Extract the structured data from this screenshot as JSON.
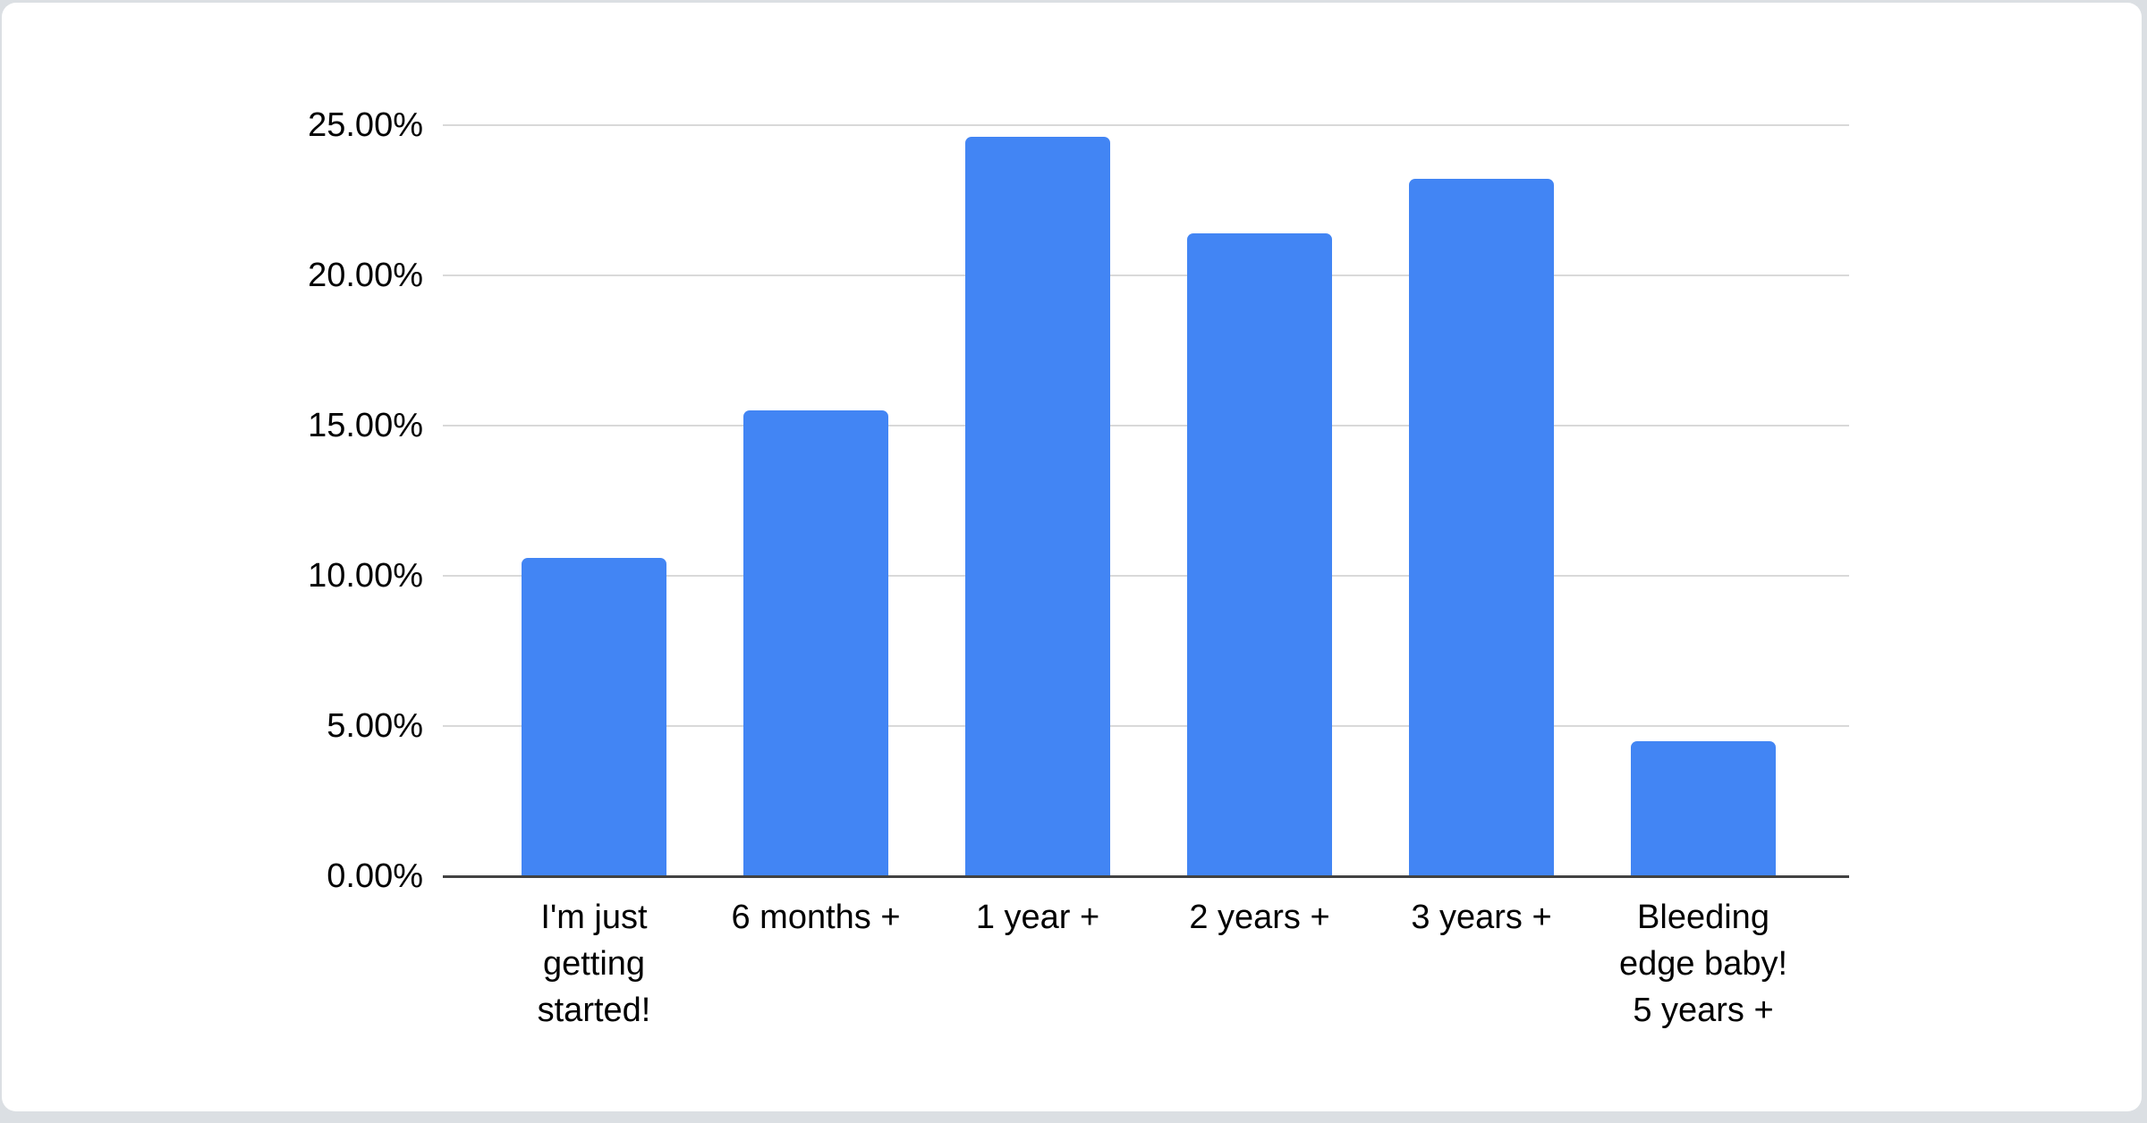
{
  "chart_data": {
    "type": "bar",
    "title": "",
    "xlabel": "",
    "ylabel": "",
    "ylim": [
      0,
      25
    ],
    "grid": true,
    "legend": false,
    "bar_color": "#4285f4",
    "categories": [
      "I'm just getting started!",
      "6 months +",
      "1 year +",
      "2 years +",
      "3 years +",
      "Bleeding edge baby! 5 years +"
    ],
    "x_tick_display": [
      "I'm just\ngetting\nstarted!",
      "6 months +",
      "1 year +",
      "2 years +",
      "3 years +",
      "Bleeding\nedge baby!\n5 years +"
    ],
    "values": [
      10.6,
      15.5,
      24.6,
      21.4,
      23.2,
      4.5
    ],
    "y_ticks": [
      {
        "value": 0,
        "label": "0.00%"
      },
      {
        "value": 5,
        "label": "5.00%"
      },
      {
        "value": 10,
        "label": "10.00%"
      },
      {
        "value": 15,
        "label": "15.00%"
      },
      {
        "value": 20,
        "label": "20.00%"
      },
      {
        "value": 25,
        "label": "25.00%"
      }
    ]
  }
}
